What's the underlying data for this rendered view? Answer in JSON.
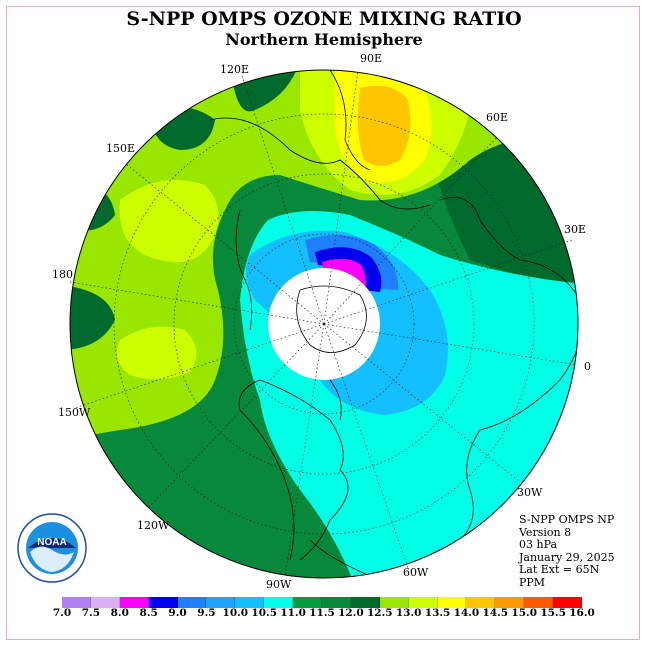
{
  "title": "S-NPP OMPS OZONE MIXING RATIO",
  "subtitle": "Northern Hemisphere",
  "longitude_labels": [
    "90E",
    "60E",
    "30E",
    "0",
    "30W",
    "60W",
    "90W",
    "120W",
    "150W",
    "180",
    "150E",
    "120E"
  ],
  "info": {
    "product": "S-NPP OMPS NP",
    "version": "Version 8",
    "level": "03 hPa",
    "date": "January 29, 2025",
    "lat_ext": "Lat Ext = 65N",
    "units": "PPM"
  },
  "logo": {
    "name": "noaa-logo",
    "text": "NOAA"
  },
  "colorbar": {
    "tick_labels": [
      "7.0",
      "7.5",
      "8.0",
      "8.5",
      "9.0",
      "9.5",
      "10.0",
      "10.5",
      "11.0",
      "11.5",
      "12.0",
      "12.5",
      "13.0",
      "13.5",
      "14.0",
      "14.5",
      "15.0",
      "15.5",
      "16.0"
    ],
    "colors": [
      "#b57ff0",
      "#dcb0f4",
      "#ff00ff",
      "#0000ee",
      "#1f7fff",
      "#1da2ff",
      "#14bfff",
      "#00ffe6",
      "#059c3c",
      "#07883a",
      "#006a2c",
      "#99e600",
      "#ccff00",
      "#ffff00",
      "#ffc600",
      "#ff9a00",
      "#ff5a00",
      "#ff0000",
      "#8a4a26"
    ]
  },
  "colors": {
    "pole_mask": "#ffffff",
    "coast": "#000000",
    "grid": "#222222"
  }
}
